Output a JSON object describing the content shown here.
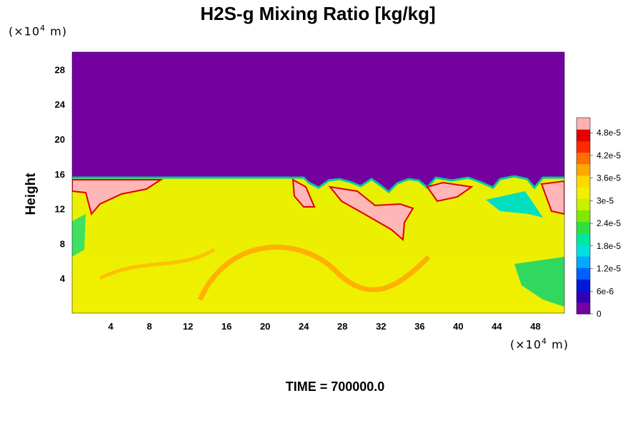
{
  "chart_data": {
    "type": "heatmap",
    "title": "H2S-g Mixing Ratio [kg/kg]",
    "ylabel": "Height",
    "x_unit": {
      "prefix": "(×10",
      "exp": "4",
      "suffix": " m)"
    },
    "y_unit": {
      "prefix": "(×10",
      "exp": "4",
      "suffix": " m)"
    },
    "xlim": [
      0,
      51
    ],
    "ylim": [
      0,
      30
    ],
    "x_ticks": [
      4,
      8,
      12,
      16,
      20,
      24,
      28,
      32,
      36,
      40,
      44,
      48
    ],
    "y_ticks": [
      4,
      8,
      12,
      16,
      20,
      24,
      28
    ],
    "colorbar": {
      "range": [
        0,
        5.2e-05
      ],
      "tick_labels": [
        "0",
        "6e-6",
        "1.2e-5",
        "1.8e-5",
        "2.4e-5",
        "3e-5",
        "3.6e-5",
        "4.2e-5",
        "4.8e-5"
      ],
      "colors": [
        "#7400a0",
        "#3000b8",
        "#0018d8",
        "#0060ff",
        "#00a8ff",
        "#00e0e0",
        "#00e8a0",
        "#30e040",
        "#80e800",
        "#c8f000",
        "#f0f000",
        "#ffd800",
        "#ffa800",
        "#ff7000",
        "#ff2800",
        "#e00000",
        "#ffb0b0"
      ]
    },
    "fields": {
      "upper_region_value": 0,
      "interface_height_approx": 15.5,
      "bulk_value_approx": 3.5e-05,
      "saturated_value": "> 5e-5"
    },
    "grid": false
  },
  "footer": {
    "time_label": "TIME = 700000.0"
  }
}
